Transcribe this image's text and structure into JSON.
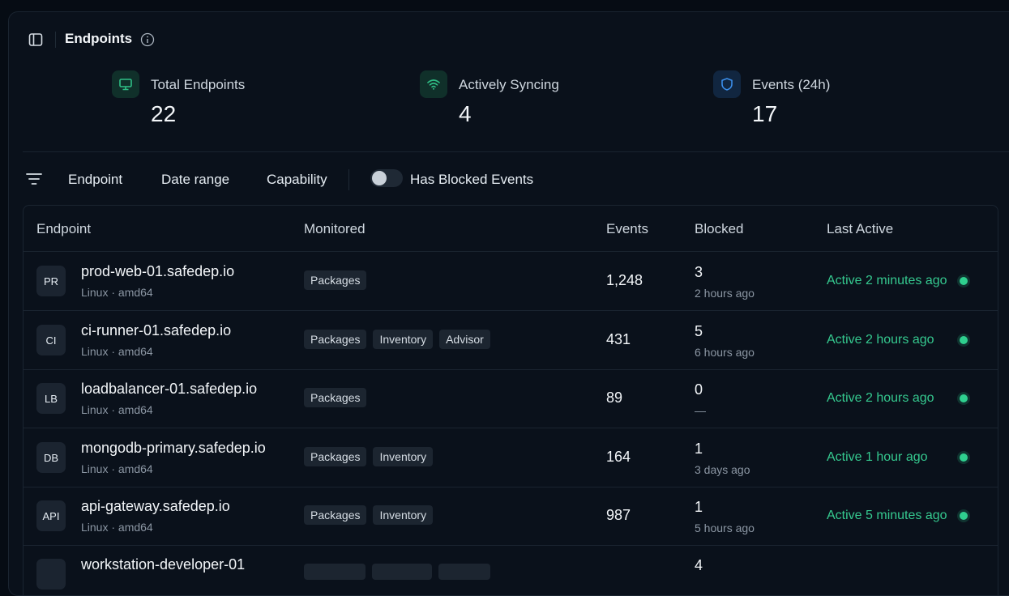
{
  "header": {
    "title": "Endpoints"
  },
  "stats": [
    {
      "label": "Total Endpoints",
      "value": "22",
      "icon": "monitor-icon",
      "color": "#2fbf86"
    },
    {
      "label": "Actively Syncing",
      "value": "4",
      "icon": "wifi-icon",
      "color": "#2fbf86"
    },
    {
      "label": "Events (24h)",
      "value": "17",
      "icon": "shield-icon",
      "color": "#3b8eea"
    }
  ],
  "filters": {
    "endpoint": "Endpoint",
    "date_range": "Date range",
    "capability": "Capability",
    "blocked_toggle_label": "Has Blocked Events",
    "blocked_toggle_on": false
  },
  "table": {
    "columns": [
      "Endpoint",
      "Monitored",
      "Events",
      "Blocked",
      "Last Active"
    ],
    "rows": [
      {
        "initials": "PR",
        "name": "prod-web-01.safedep.io",
        "os": "Linux · amd64",
        "tags": [
          "Packages"
        ],
        "events": "1,248",
        "blocked": "3",
        "blocked_time": "2 hours ago",
        "last_active": "Active 2 minutes ago"
      },
      {
        "initials": "CI",
        "name": "ci-runner-01.safedep.io",
        "os": "Linux · amd64",
        "tags": [
          "Packages",
          "Inventory",
          "Advisor"
        ],
        "events": "431",
        "blocked": "5",
        "blocked_time": "6 hours ago",
        "last_active": "Active 2 hours ago"
      },
      {
        "initials": "LB",
        "name": "loadbalancer-01.safedep.io",
        "os": "Linux · amd64",
        "tags": [
          "Packages"
        ],
        "events": "89",
        "blocked": "0",
        "blocked_time": "—",
        "last_active": "Active 2 hours ago"
      },
      {
        "initials": "DB",
        "name": "mongodb-primary.safedep.io",
        "os": "Linux · amd64",
        "tags": [
          "Packages",
          "Inventory"
        ],
        "events": "164",
        "blocked": "1",
        "blocked_time": "3 days ago",
        "last_active": "Active 1 hour ago"
      },
      {
        "initials": "API",
        "name": "api-gateway.safedep.io",
        "os": "Linux · amd64",
        "tags": [
          "Packages",
          "Inventory"
        ],
        "events": "987",
        "blocked": "1",
        "blocked_time": "5 hours ago",
        "last_active": "Active 5 minutes ago"
      },
      {
        "initials": "",
        "name": "workstation-developer-01",
        "os": "",
        "tags": [
          "",
          "",
          ""
        ],
        "events": "",
        "blocked": "4",
        "blocked_time": "",
        "last_active": ""
      }
    ]
  },
  "colors": {
    "accent_green": "#35c98f",
    "accent_blue": "#3b8eea",
    "background": "#060c14"
  }
}
